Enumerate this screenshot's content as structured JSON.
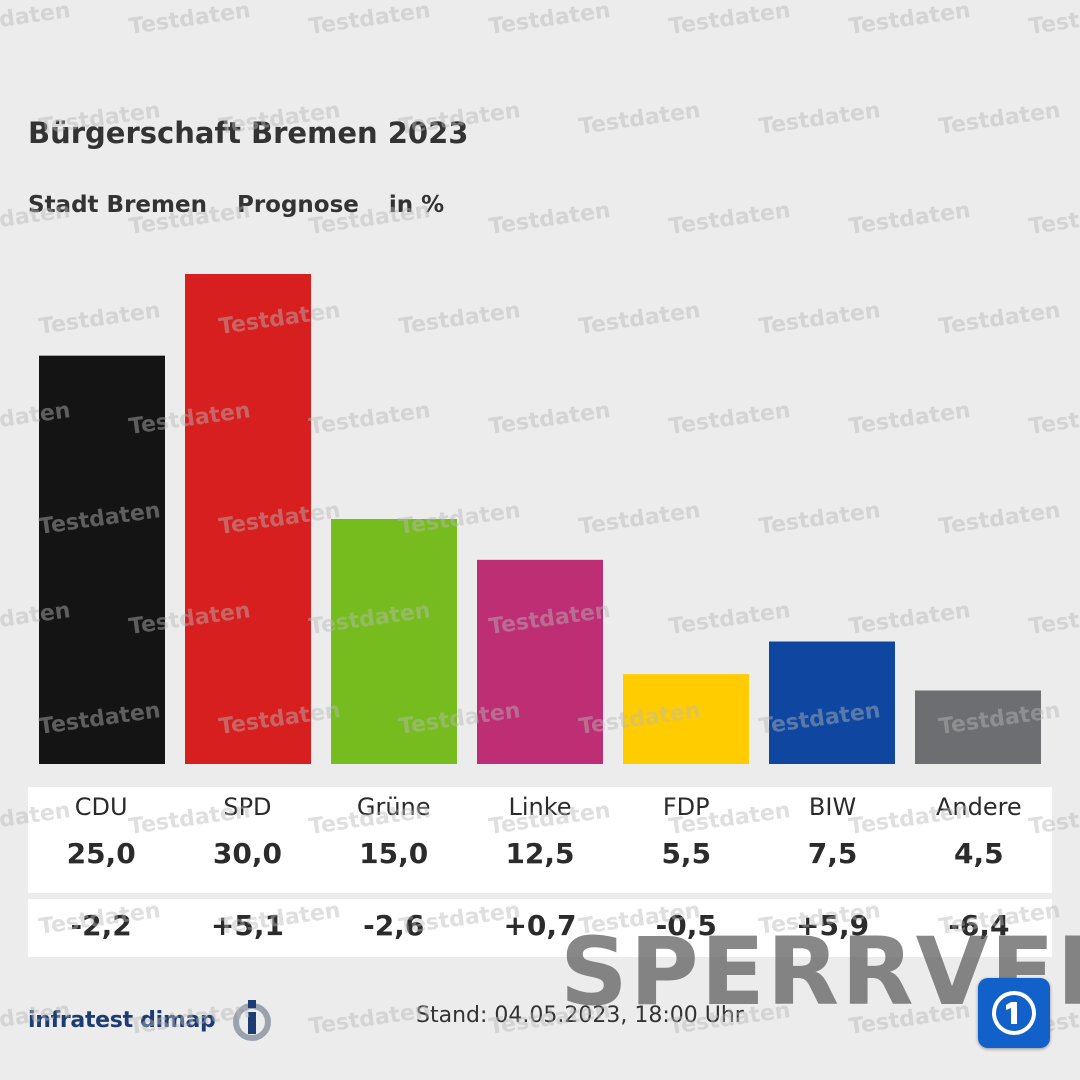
{
  "title": "Bürgerschaft Bremen 2023",
  "subtitle": {
    "region": "Stadt Bremen",
    "type": "Prognose",
    "unit": "in %"
  },
  "watermark_text": "Testdaten",
  "overlay_text": "SPERRVER",
  "source": "infratest dimap",
  "stand_label": "Stand:",
  "stand_value": "04.05.2023, 18:00 Uhr",
  "chart_data": {
    "type": "bar",
    "title": "Bürgerschaft Bremen 2023",
    "categories": [
      "CDU",
      "SPD",
      "Grüne",
      "Linke",
      "FDP",
      "BIW",
      "Andere"
    ],
    "values": [
      25.0,
      30.0,
      15.0,
      12.5,
      5.5,
      7.5,
      4.5
    ],
    "value_labels": [
      "25,0",
      "30,0",
      "15,0",
      "12,5",
      "5,5",
      "7,5",
      "4,5"
    ],
    "diff_labels": [
      "-2,2",
      "+5,1",
      "-2,6",
      "+0,7",
      "-0,5",
      "+5,9",
      "-6,4"
    ],
    "colors": [
      "#141414",
      "#d71f1f",
      "#77bc1f",
      "#be2e74",
      "#ffcc00",
      "#0e46a0",
      "#6d6e71"
    ],
    "ylim": [
      0,
      30
    ],
    "xlabel": "",
    "ylabel": ""
  }
}
